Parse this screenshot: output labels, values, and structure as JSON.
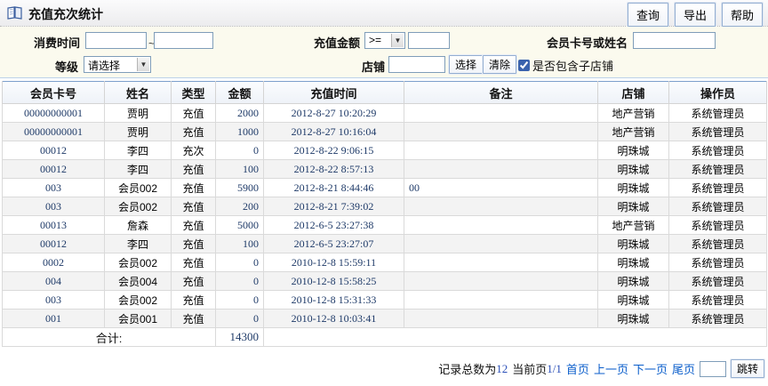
{
  "header": {
    "title": "充值充次统计",
    "buttons": {
      "query": "查询",
      "export": "导出",
      "help": "帮助"
    }
  },
  "filters": {
    "consume_time_label": "消费时间",
    "consume_time_from": "",
    "consume_time_to": "",
    "tilde": "~",
    "amount_label": "充值金额",
    "amount_operator": ">=",
    "amount_value": "",
    "member_label": "会员卡号或姓名",
    "member_value": "",
    "level_label": "等级",
    "level_value": "请选择",
    "store_label": "店铺",
    "store_value": "",
    "store_select_button": "选择",
    "store_clear_button": "清除",
    "include_substore_label": "是否包含子店铺",
    "include_substore_checked": true,
    "dropdown_arrow": "▼"
  },
  "table": {
    "columns": [
      "会员卡号",
      "姓名",
      "类型",
      "金额",
      "充值时间",
      "备注",
      "店铺",
      "操作员"
    ],
    "rows": [
      [
        "00000000001",
        "贾明",
        "充值",
        "2000",
        "2012-8-27 10:20:29",
        "",
        "地产营销",
        "系统管理员"
      ],
      [
        "00000000001",
        "贾明",
        "充值",
        "1000",
        "2012-8-27 10:16:04",
        "",
        "地产营销",
        "系统管理员"
      ],
      [
        "00012",
        "李四",
        "充次",
        "0",
        "2012-8-22 9:06:15",
        "",
        "明珠城",
        "系统管理员"
      ],
      [
        "00012",
        "李四",
        "充值",
        "100",
        "2012-8-22 8:57:13",
        "",
        "明珠城",
        "系统管理员"
      ],
      [
        "003",
        "会员002",
        "充值",
        "5900",
        "2012-8-21 8:44:46",
        "00",
        "明珠城",
        "系统管理员"
      ],
      [
        "003",
        "会员002",
        "充值",
        "200",
        "2012-8-21 7:39:02",
        "",
        "明珠城",
        "系统管理员"
      ],
      [
        "00013",
        "詹森",
        "充值",
        "5000",
        "2012-6-5 23:27:38",
        "",
        "地产营销",
        "系统管理员"
      ],
      [
        "00012",
        "李四",
        "充值",
        "100",
        "2012-6-5 23:27:07",
        "",
        "明珠城",
        "系统管理员"
      ],
      [
        "0002",
        "会员002",
        "充值",
        "0",
        "2010-12-8 15:59:11",
        "",
        "明珠城",
        "系统管理员"
      ],
      [
        "004",
        "会员004",
        "充值",
        "0",
        "2010-12-8 15:58:25",
        "",
        "明珠城",
        "系统管理员"
      ],
      [
        "003",
        "会员002",
        "充值",
        "0",
        "2010-12-8 15:31:33",
        "",
        "明珠城",
        "系统管理员"
      ],
      [
        "001",
        "会员001",
        "充值",
        "0",
        "2010-12-8 10:03:41",
        "",
        "明珠城",
        "系统管理员"
      ]
    ],
    "footer": {
      "label": "合计:",
      "total": "14300"
    }
  },
  "pagination": {
    "total_prefix": "记录总数为",
    "total": "12",
    "current_prefix": "当前页",
    "current": "1/1",
    "first": "首页",
    "prev": "上一页",
    "next": "下一页",
    "last": "尾页",
    "jump_value": "",
    "jump_button": "跳转"
  },
  "colors": {
    "accent_border": "#7da0cc",
    "filter_bg": "#fbfaee",
    "link_blue": "#0b5ecb",
    "numeric_navy": "#1e3a68"
  }
}
